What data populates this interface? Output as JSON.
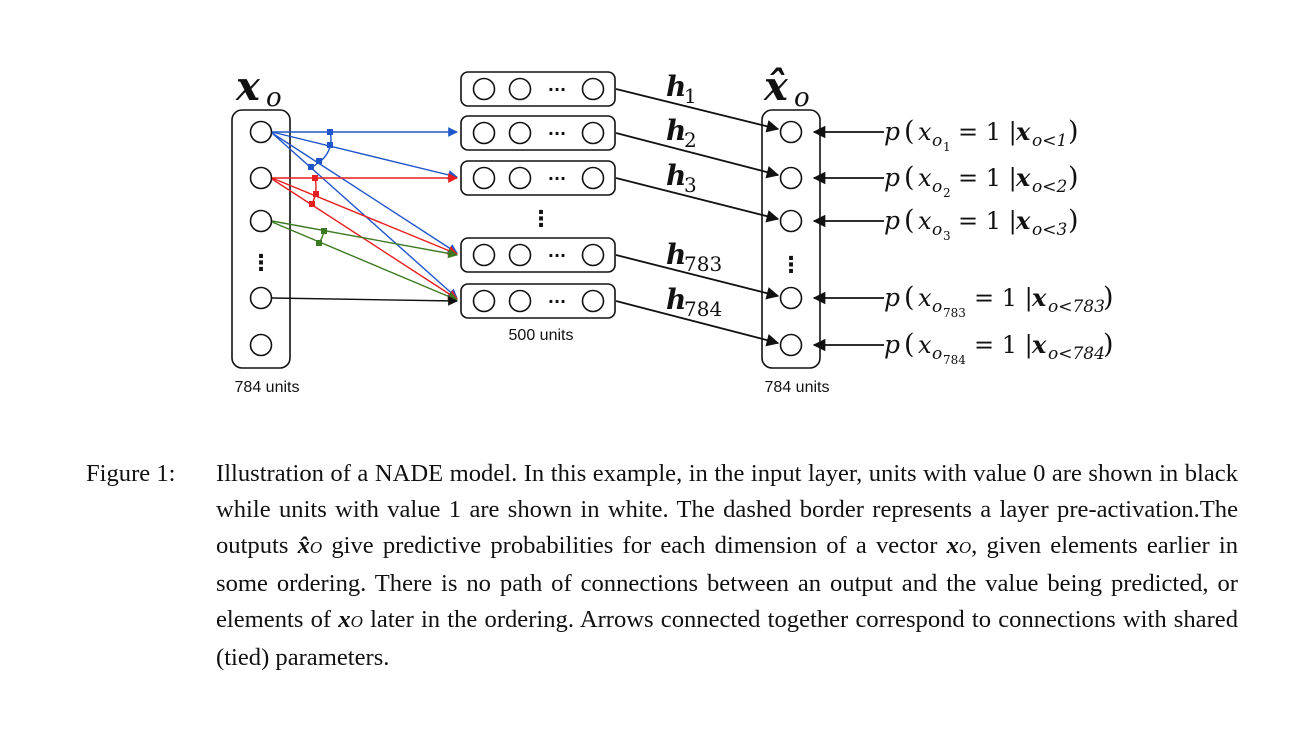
{
  "colors": {
    "blue": "#1f56c9",
    "red": "#e51f1f",
    "green": "#3c7a22",
    "black": "#111111"
  },
  "input_layer": {
    "symbol": "x",
    "subscript": "o",
    "units_label": "784 units",
    "dots": "⋮"
  },
  "hidden_layer": {
    "rows": [
      {
        "label": "h",
        "subscript": "1"
      },
      {
        "label": "h",
        "subscript": "2"
      },
      {
        "label": "h",
        "subscript": "3"
      },
      {
        "label": "h",
        "subscript": "783"
      },
      {
        "label": "h",
        "subscript": "784"
      }
    ],
    "row_dots": "···",
    "vdots": "⋮",
    "units_label": "500 units"
  },
  "output_layer": {
    "symbol": "x̂",
    "subscript": "o",
    "units_label": "784 units",
    "dots": "⋮"
  },
  "probabilities": [
    {
      "p": "p",
      "var": "x",
      "idx_o": "o",
      "idx_sub": "1",
      "eq": "= 1 |",
      "cond": "x",
      "cond_sub": "o<1"
    },
    {
      "p": "p",
      "var": "x",
      "idx_o": "o",
      "idx_sub": "2",
      "eq": "= 1 |",
      "cond": "x",
      "cond_sub": "o<2"
    },
    {
      "p": "p",
      "var": "x",
      "idx_o": "o",
      "idx_sub": "3",
      "eq": "= 1 |",
      "cond": "x",
      "cond_sub": "o<3"
    },
    {
      "p": "p",
      "var": "x",
      "idx_o": "o",
      "idx_sub": "783",
      "eq": "= 1 |",
      "cond": "x",
      "cond_sub": "o<783"
    },
    {
      "p": "p",
      "var": "x",
      "idx_o": "o",
      "idx_sub": "784",
      "eq": "= 1 |",
      "cond": "x",
      "cond_sub": "o<784"
    }
  ],
  "caption": {
    "label": "Figure 1:",
    "text_1": "Illustration of a NADE model. In this example, in the input layer, units with value 0 are shown in black while units with value 1 are shown in white. The dashed border represents a layer pre-activation.The outputs ",
    "sym_1": "x̂",
    "sym_1_sub": "O",
    "text_2": " give predictive probabilities for each dimension of a vector ",
    "sym_2": "x",
    "sym_2_sub": "O",
    "text_3": ", given elements earlier in some ordering. There is no path of connections between an output and the value being predicted, or elements of ",
    "sym_3": "x",
    "sym_3_sub": "O",
    "text_4": " later in the ordering. Arrows connected together correspond to connections with shared (tied) parameters."
  }
}
